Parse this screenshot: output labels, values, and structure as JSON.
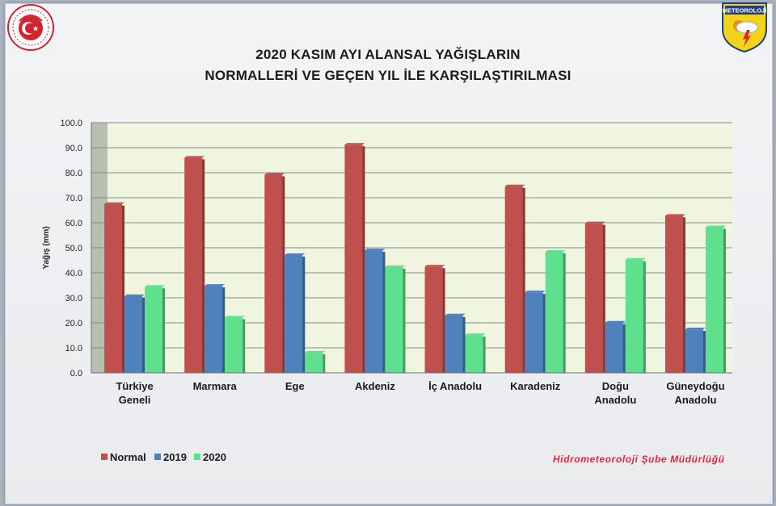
{
  "header": {
    "title_line1": "2020 KASIM AYI ALANSAL YAĞIŞLARIN",
    "title_line2": "NORMALLERİ VE GEÇEN YIL İLE KARŞILAŞTIRILMASI",
    "right_logo_text": "METEOROLOJİ"
  },
  "footer": {
    "credit": "Hidrometeoroloji Şube Müdürlüğü"
  },
  "colors": {
    "normal": "#c0504d",
    "2019": "#4f81bd",
    "2020": "#5fe08c",
    "plot_background": "#eff5df",
    "grid": "#8a8a8a"
  },
  "chart_data": {
    "type": "bar",
    "title": "2020 KASIM AYI ALANSAL YAĞIŞLARIN NORMALLERİ VE GEÇEN YIL İLE KARŞILAŞTIRILMASI",
    "xlabel": "",
    "ylabel": "Yağış (mm)",
    "ylim": [
      0,
      100
    ],
    "yticks": [
      "0.0",
      "10.0",
      "20.0",
      "30.0",
      "40.0",
      "50.0",
      "60.0",
      "70.0",
      "80.0",
      "90.0",
      "100.0"
    ],
    "categories": [
      [
        "Türkiye",
        "Geneli"
      ],
      [
        "Marmara"
      ],
      [
        "Ege"
      ],
      [
        "Akdeniz"
      ],
      [
        "İç Anadolu"
      ],
      [
        "Karadeniz"
      ],
      [
        "Doğu",
        "Anadolu"
      ],
      [
        "Güneydoğu",
        "Anadolu"
      ]
    ],
    "series": [
      {
        "name": "Normal",
        "color": "#c0504d",
        "values": [
          67.5,
          86,
          79.2,
          91.2,
          42.5,
          74.6,
          59.8,
          62.8
        ]
      },
      {
        "name": "2019",
        "color": "#4f81bd",
        "values": [
          30.7,
          34.8,
          47.1,
          49,
          23,
          32.2,
          20.1,
          17.4
        ]
      },
      {
        "name": "2020",
        "color": "#5fe08c",
        "values": [
          34.4,
          22.1,
          8.1,
          42.3,
          15.1,
          48.4,
          45.2,
          58.2
        ]
      }
    ],
    "grid": true,
    "legend_position": "bottom-left"
  }
}
